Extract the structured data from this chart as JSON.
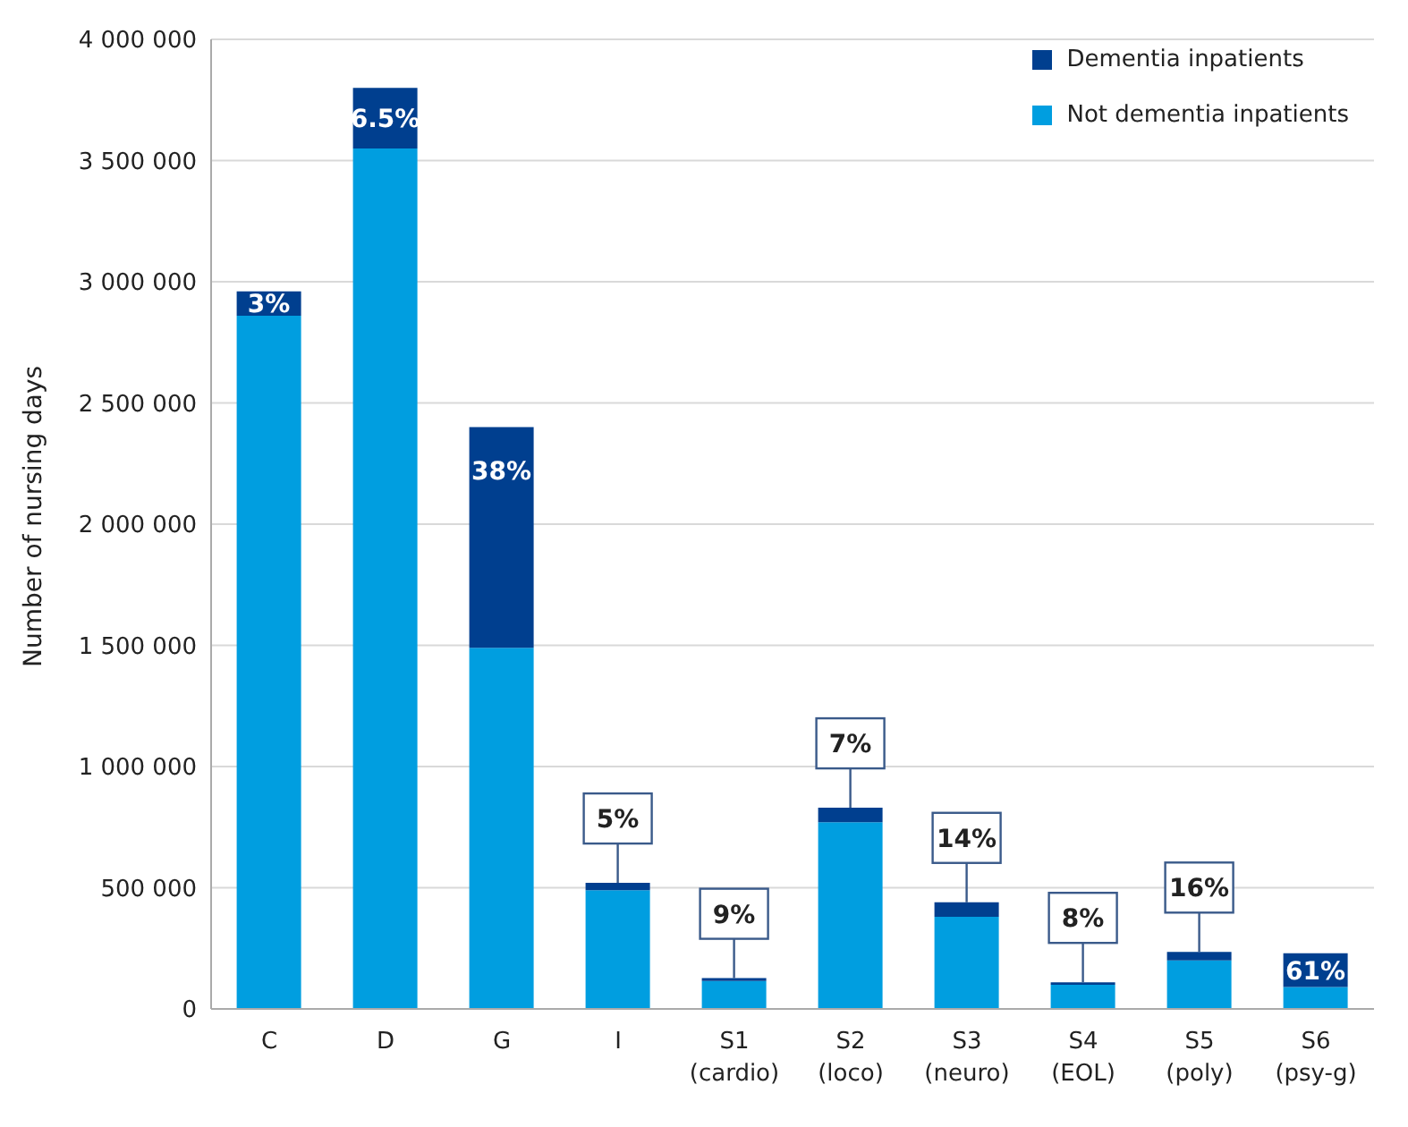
{
  "chart_data": {
    "type": "bar",
    "stacked": true,
    "ylabel": "Number of nursing days",
    "categories": [
      "C",
      "D",
      "G",
      "I",
      "S1\n(cardio)",
      "S2\n(loco)",
      "S3\n(neuro)",
      "S4\n(EOL)",
      "S5\n(poly)",
      "S6\n(psy-g)"
    ],
    "series": [
      {
        "name": "Not dementia inpatients",
        "color": "#009ee0",
        "values": [
          2860000,
          3550000,
          1490000,
          490000,
          115000,
          770000,
          380000,
          100000,
          200000,
          90000
        ]
      },
      {
        "name": "Dementia inpatients",
        "color": "#003f8f",
        "values": [
          100000,
          250000,
          910000,
          30000,
          12000,
          60000,
          60000,
          10000,
          35000,
          140000
        ]
      }
    ],
    "annotations": [
      {
        "text": "3%",
        "x": "C",
        "y": 2960000
      },
      {
        "text": "6.5%",
        "x": "D",
        "y": 3800000
      },
      {
        "text": "38%",
        "x": "G",
        "y": 2400000
      },
      {
        "text": "5%",
        "x": "I",
        "y": 520000
      },
      {
        "text": "9%",
        "x": "S1\n(cardio)",
        "y": 127000
      },
      {
        "text": "7%",
        "x": "S2\n(loco)",
        "y": 830000
      },
      {
        "text": "14%",
        "x": "S3\n(neuro)",
        "y": 440000
      },
      {
        "text": "8%",
        "x": "S4\n(EOL)",
        "y": 110000
      },
      {
        "text": "16%",
        "x": "S5\n(poly)",
        "y": 235000
      },
      {
        "text": "61%",
        "x": "S6\n(psy-g)",
        "y": 230000
      }
    ],
    "ylim": [
      0,
      4000000
    ],
    "yticks": [
      {
        "value": 0,
        "label": "0"
      },
      {
        "value": 500000,
        "label": "500 000"
      },
      {
        "value": 1000000,
        "label": "1 000 000"
      },
      {
        "value": 1500000,
        "label": "1 500 000"
      },
      {
        "value": 2000000,
        "label": "2 000 000"
      },
      {
        "value": 2500000,
        "label": "2 500 000"
      },
      {
        "value": 3000000,
        "label": "3 000 000"
      },
      {
        "value": 3500000,
        "label": "3 500 000"
      },
      {
        "value": 4000000,
        "label": "4 000 000"
      }
    ],
    "grid": "y",
    "legend": "top right"
  }
}
